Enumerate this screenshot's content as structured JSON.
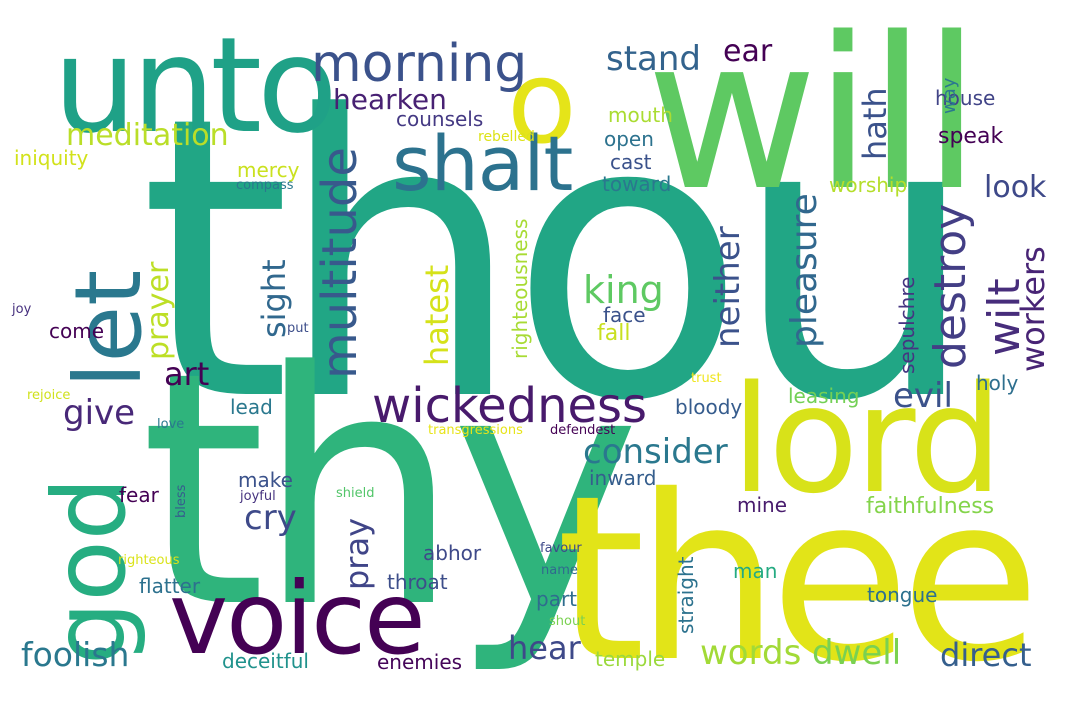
{
  "words": [
    {
      "text": "thou",
      "color": "#21a685"
    },
    {
      "text": "thy",
      "color": "#2fb47c"
    },
    {
      "text": "thee",
      "color": "#e2e418"
    },
    {
      "text": "will",
      "color": "#5ec962"
    },
    {
      "text": "lord",
      "color": "#d8e219"
    },
    {
      "text": "unto",
      "color": "#1fa187"
    },
    {
      "text": "voice",
      "color": "#440154"
    },
    {
      "text": "god",
      "color": "#26ad81"
    },
    {
      "text": "let",
      "color": "#2a788e"
    },
    {
      "text": "o",
      "color": "#e5e419"
    },
    {
      "text": "shalt",
      "color": "#2c728e"
    },
    {
      "text": "morning",
      "color": "#3b528b"
    },
    {
      "text": "wickedness",
      "color": "#481a6c"
    },
    {
      "text": "multitude",
      "color": "#38598c"
    },
    {
      "text": "destroy",
      "color": "#433e85"
    },
    {
      "text": "wilt",
      "color": "#472d7b"
    },
    {
      "text": "hearken",
      "color": "#482173"
    },
    {
      "text": "meditation",
      "color": "#bade28"
    },
    {
      "text": "stand",
      "color": "#33638d"
    },
    {
      "text": "ear",
      "color": "#440154"
    },
    {
      "text": "hath",
      "color": "#3b528b"
    },
    {
      "text": "look",
      "color": "#3e4989"
    },
    {
      "text": "pleasure",
      "color": "#31688e"
    },
    {
      "text": "workers",
      "color": "#482475"
    },
    {
      "text": "neither",
      "color": "#3b528b"
    },
    {
      "text": "king",
      "color": "#5ec962"
    },
    {
      "text": "hatest",
      "color": "#d5e21a"
    },
    {
      "text": "prayer",
      "color": "#bddf26"
    },
    {
      "text": "sight",
      "color": "#31688e"
    },
    {
      "text": "art",
      "color": "#440154"
    },
    {
      "text": "give",
      "color": "#482878"
    },
    {
      "text": "consider",
      "color": "#2a788e"
    },
    {
      "text": "evil",
      "color": "#3b528b"
    },
    {
      "text": "cry",
      "color": "#3e4a89"
    },
    {
      "text": "pray",
      "color": "#404588"
    },
    {
      "text": "words",
      "color": "#a2da37"
    },
    {
      "text": "dwell",
      "color": "#7ad151"
    },
    {
      "text": "direct",
      "color": "#355f8d"
    },
    {
      "text": "hear",
      "color": "#3e4989"
    },
    {
      "text": "foolish",
      "color": "#2a788e"
    },
    {
      "text": "faithfulness",
      "color": "#84d44b"
    },
    {
      "text": "counsels",
      "color": "#443983"
    },
    {
      "text": "mouth",
      "color": "#aadc32"
    },
    {
      "text": "house",
      "color": "#414487"
    },
    {
      "text": "speak",
      "color": "#440154"
    },
    {
      "text": "way",
      "color": "#2a788e"
    },
    {
      "text": "open",
      "color": "#2c728e"
    },
    {
      "text": "cast",
      "color": "#3b528b"
    },
    {
      "text": "toward",
      "color": "#2a788e"
    },
    {
      "text": "worship",
      "color": "#b5de2b"
    },
    {
      "text": "iniquity",
      "color": "#d2e21b"
    },
    {
      "text": "mercy",
      "color": "#cae11f"
    },
    {
      "text": "compass",
      "color": "#2a788e"
    },
    {
      "text": "rebelled",
      "color": "#dde318"
    },
    {
      "text": "righteousness",
      "color": "#a8db34"
    },
    {
      "text": "sepulchre",
      "color": "#453581"
    },
    {
      "text": "holy",
      "color": "#2e6f8e"
    },
    {
      "text": "leasing",
      "color": "#73d056"
    },
    {
      "text": "face",
      "color": "#3b528b"
    },
    {
      "text": "fall",
      "color": "#c8e020"
    },
    {
      "text": "come",
      "color": "#440154"
    },
    {
      "text": "lead",
      "color": "#2a788e"
    },
    {
      "text": "bloody",
      "color": "#365c8d"
    },
    {
      "text": "inward",
      "color": "#355e8d"
    },
    {
      "text": "make",
      "color": "#3b528b"
    },
    {
      "text": "fear",
      "color": "#440154"
    },
    {
      "text": "mine",
      "color": "#481b6d"
    },
    {
      "text": "abhor",
      "color": "#3e4989"
    },
    {
      "text": "straight",
      "color": "#2c728e"
    },
    {
      "text": "man",
      "color": "#25ab82"
    },
    {
      "text": "part",
      "color": "#2f6c8e"
    },
    {
      "text": "throat",
      "color": "#3d4e8a"
    },
    {
      "text": "flatter",
      "color": "#2d718e"
    },
    {
      "text": "tongue",
      "color": "#2d718e"
    },
    {
      "text": "deceitful",
      "color": "#20928c"
    },
    {
      "text": "enemies",
      "color": "#450559"
    },
    {
      "text": "temple",
      "color": "#9bd93c"
    },
    {
      "text": "joy",
      "color": "#46307e"
    },
    {
      "text": "put",
      "color": "#3d4e8a"
    },
    {
      "text": "rejoice",
      "color": "#d0e11c"
    },
    {
      "text": "love",
      "color": "#2a788e"
    },
    {
      "text": "transgressions",
      "color": "#e7e419"
    },
    {
      "text": "defendest",
      "color": "#440154"
    },
    {
      "text": "trust",
      "color": "#efe51c"
    },
    {
      "text": "joyful",
      "color": "#46337f"
    },
    {
      "text": "shield",
      "color": "#52c569"
    },
    {
      "text": "bless",
      "color": "#365d8d"
    },
    {
      "text": "righteous",
      "color": "#dae319"
    },
    {
      "text": "favour",
      "color": "#3e4989"
    },
    {
      "text": "name",
      "color": "#306a8e"
    },
    {
      "text": "shout",
      "color": "#7ad151"
    }
  ]
}
